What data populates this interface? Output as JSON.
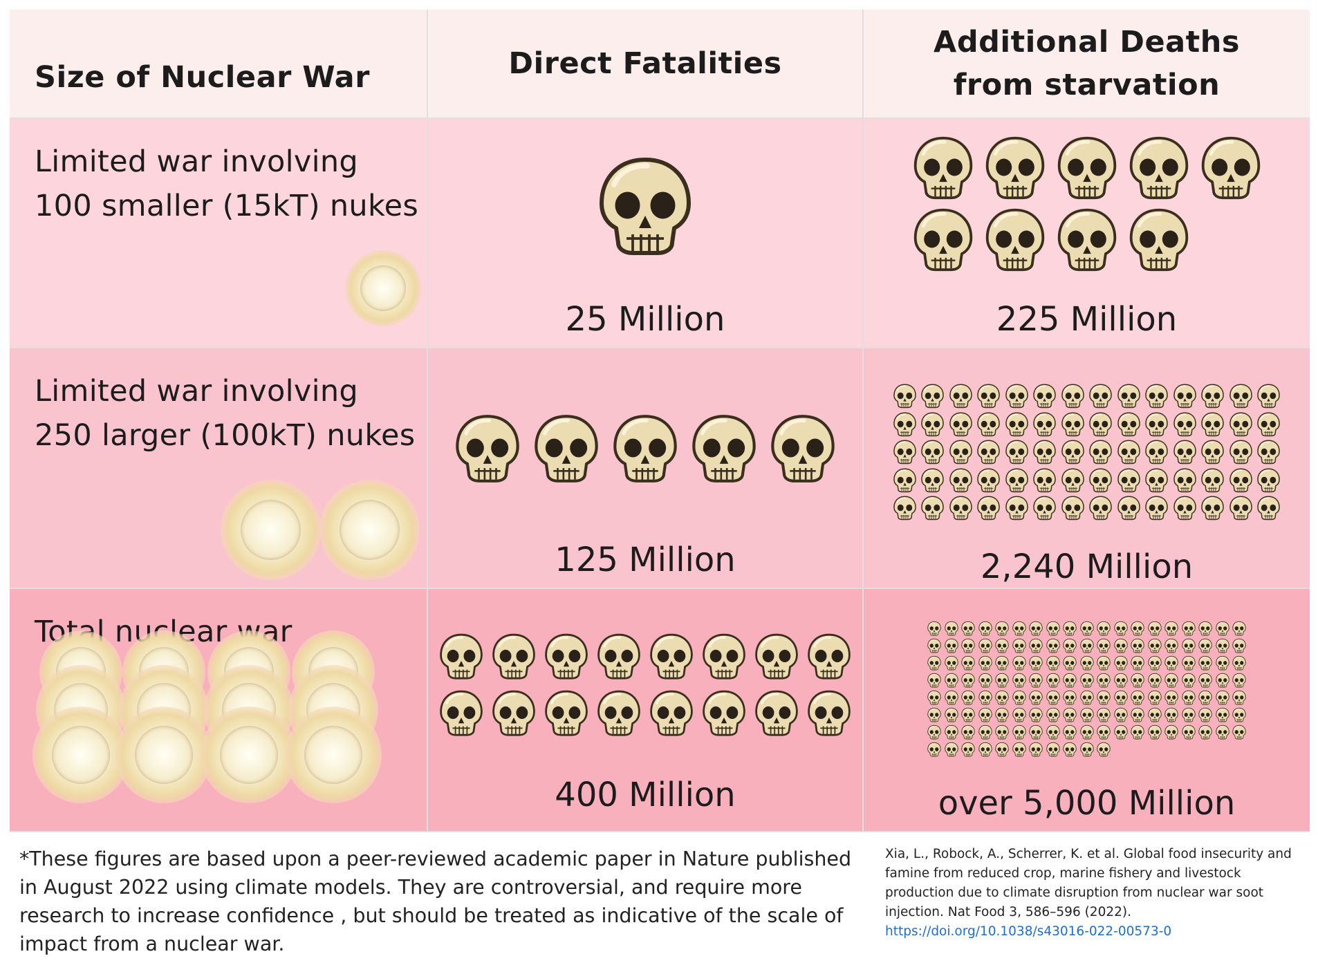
{
  "colors": {
    "header_bg": "#fdeeee",
    "row1_bg": "#fcd6dc",
    "row2_bg": "#fac4cf",
    "row3_bg": "#f8b0bc",
    "skull_bone": "#ecdcb2",
    "link": "#1a6fd6"
  },
  "icons": {
    "skull": "skull-icon",
    "blast": "explosion-icon"
  },
  "chart_data": {
    "type": "table",
    "columns": [
      "Size of Nuclear War",
      "Direct Fatalities",
      "Additional Deaths\nfrom starvation"
    ],
    "rows": [
      {
        "scenario": "Limited war involving\n100 smaller (15kT) nukes",
        "direct_fatalities": "25 Million",
        "direct_fatalities_millions": 25,
        "starvation_deaths": "225 Million",
        "starvation_deaths_millions": 225,
        "blast_icons": 1,
        "direct_skull_icons": 1,
        "starvation_skull_icons": 9
      },
      {
        "scenario": "Limited war involving\n250 larger (100kT) nukes",
        "direct_fatalities": "125 Million",
        "direct_fatalities_millions": 125,
        "starvation_deaths": "2,240 Million",
        "starvation_deaths_millions": 2240,
        "blast_icons": 2,
        "direct_skull_icons": 5,
        "starvation_skull_icons": 70
      },
      {
        "scenario": "Total nuclear war",
        "direct_fatalities": "400 Million",
        "direct_fatalities_millions": 400,
        "starvation_deaths": "over 5,000 Million",
        "starvation_deaths_millions": 5000,
        "blast_icons": 12,
        "direct_skull_icons": 16,
        "starvation_skull_icons": 144
      }
    ]
  },
  "footnote": "*These figures are based upon a peer-reviewed academic paper in Nature published in August 2022 using climate models. They are controversial, and require more research to increase confidence , but should be treated as indicative of the scale of impact from a nuclear war.",
  "citation": {
    "text": "Xia, L., Robock, A., Scherrer, K. et al. Global food insecurity and famine from reduced crop, marine fishery and livestock production due to climate disruption from nuclear war soot injection. Nat Food 3, 586–596 (2022).",
    "link": "https://doi.org/10.1038/s43016-022-00573-0"
  }
}
